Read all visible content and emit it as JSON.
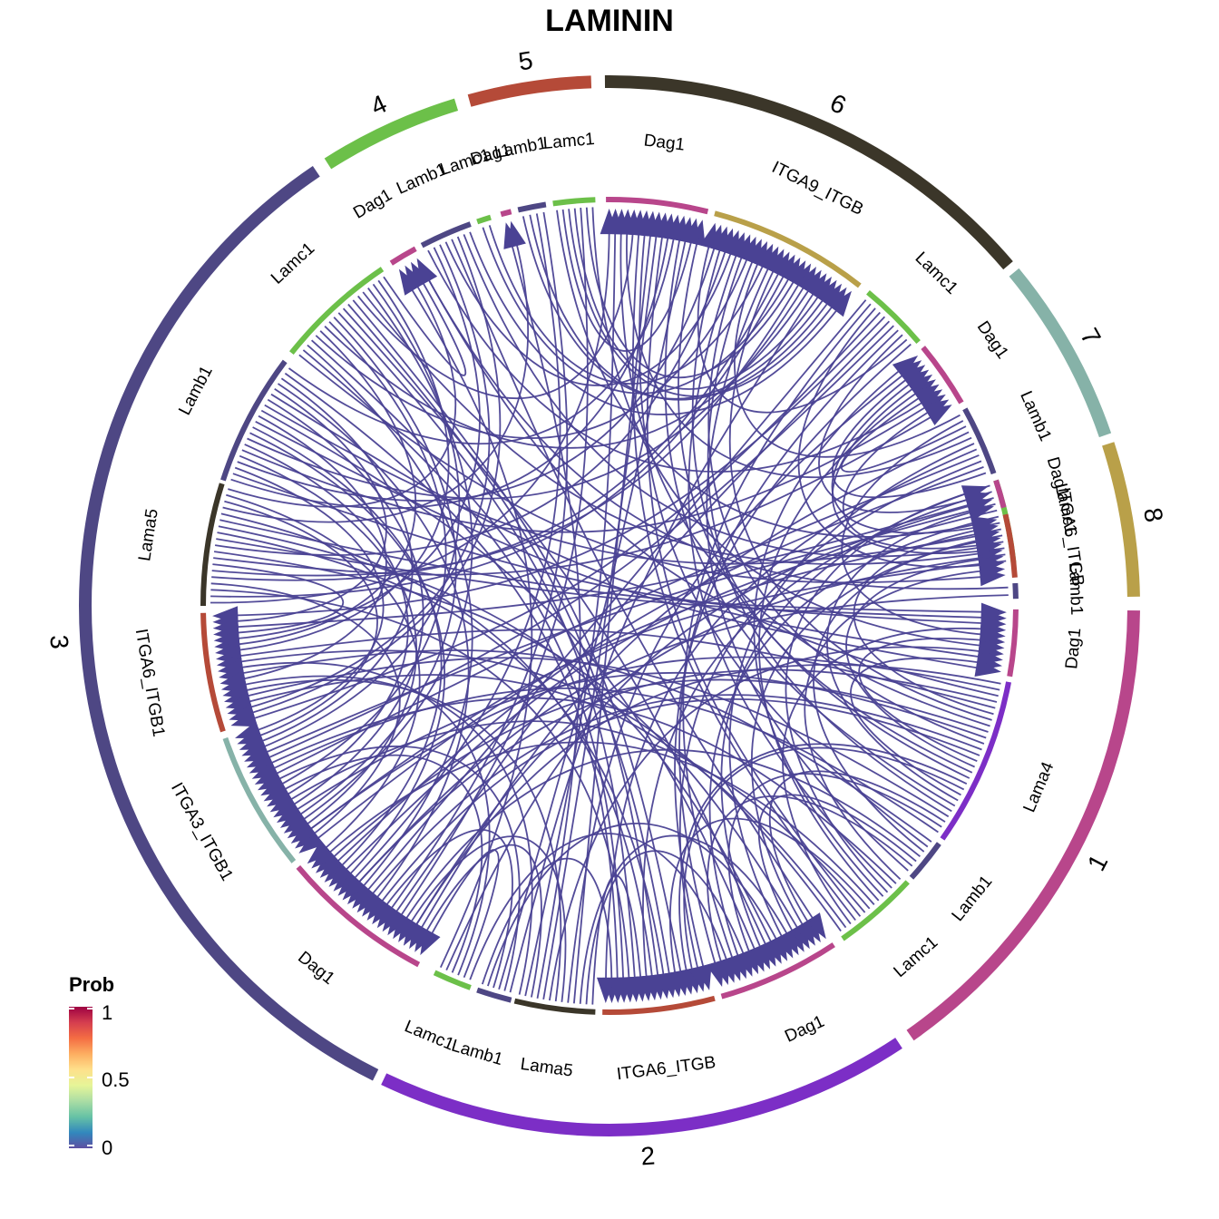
{
  "chart_data": {
    "type": "chord",
    "title": "LAMININ",
    "link_color": "#4a4294",
    "groups": [
      {
        "label": "1",
        "color": "#b8468b"
      },
      {
        "label": "2",
        "color": "#7c2ec6"
      },
      {
        "label": "3",
        "color": "#4e4784"
      },
      {
        "label": "4",
        "color": "#6cc049"
      },
      {
        "label": "5",
        "color": "#b54a38"
      },
      {
        "label": "6",
        "color": "#3b3629"
      },
      {
        "label": "7",
        "color": "#86b2a8"
      },
      {
        "label": "8",
        "color": "#b9a049"
      }
    ],
    "sectors": [
      {
        "label": "Dag1",
        "group": "1",
        "color": "#b8468b"
      },
      {
        "label": "Lama4",
        "group": "1",
        "color": "#7c2ec6"
      },
      {
        "label": "Lamb1",
        "group": "1",
        "color": "#4e4784"
      },
      {
        "label": "Lamc1",
        "group": "1",
        "color": "#6cc049"
      },
      {
        "label": "Dag1",
        "group": "2",
        "color": "#b8468b"
      },
      {
        "label": "ITGA6_ITGB",
        "group": "2",
        "color": "#b54a38"
      },
      {
        "label": "Lama5",
        "group": "2",
        "color": "#3b3629"
      },
      {
        "label": "Lamb1",
        "group": "2",
        "color": "#4e4784"
      },
      {
        "label": "Lamc1",
        "group": "2",
        "color": "#6cc049"
      },
      {
        "label": "Dag1",
        "group": "3",
        "color": "#b8468b"
      },
      {
        "label": "ITGA3_ITGB1",
        "group": "3",
        "color": "#86b2a8"
      },
      {
        "label": "ITGA6_ITGB1",
        "group": "3",
        "color": "#b54a38"
      },
      {
        "label": "Lama5",
        "group": "3",
        "color": "#3b3629"
      },
      {
        "label": "Lamb1",
        "group": "3",
        "color": "#4e4784"
      },
      {
        "label": "Lamc1",
        "group": "3",
        "color": "#6cc049"
      },
      {
        "label": "Dag1",
        "group": "4",
        "color": "#b8468b"
      },
      {
        "label": "Lamb1",
        "group": "4",
        "color": "#4e4784"
      },
      {
        "label": "Lamc1",
        "group": "4",
        "color": "#6cc049"
      },
      {
        "label": "Dag1",
        "group": "5",
        "color": "#b8468b"
      },
      {
        "label": "Lamb1",
        "group": "5",
        "color": "#4e4784"
      },
      {
        "label": "Lamc1",
        "group": "5",
        "color": "#6cc049"
      },
      {
        "label": "Dag1",
        "group": "6",
        "color": "#b8468b"
      },
      {
        "label": "ITGA9_ITGB",
        "group": "6",
        "color": "#b9a049"
      },
      {
        "label": "Lamc1",
        "group": "6",
        "color": "#6cc049"
      },
      {
        "label": "Dag1",
        "group": "7",
        "color": "#b8468b"
      },
      {
        "label": "Lamb1",
        "group": "7",
        "color": "#4e4784"
      },
      {
        "label": "Lamc1",
        "group": "7",
        "color": "#6cc049"
      },
      {
        "label": "Dag1",
        "group": "8",
        "color": "#b8468b"
      },
      {
        "label": "ITGA6_ITGB",
        "group": "8",
        "color": "#b54a38"
      },
      {
        "label": "Lamb1",
        "group": "8",
        "color": "#4e4784"
      }
    ],
    "legend": {
      "title": "Prob",
      "placement": "bottom-left",
      "ticks": [
        "0",
        "0.5",
        "1"
      ],
      "colors": [
        "#5e4fa2",
        "#3288bd",
        "#66c2a5",
        "#abdda4",
        "#e6f598",
        "#fee08b",
        "#fdae61",
        "#f46d43",
        "#d53e4f",
        "#9e0142"
      ]
    }
  }
}
